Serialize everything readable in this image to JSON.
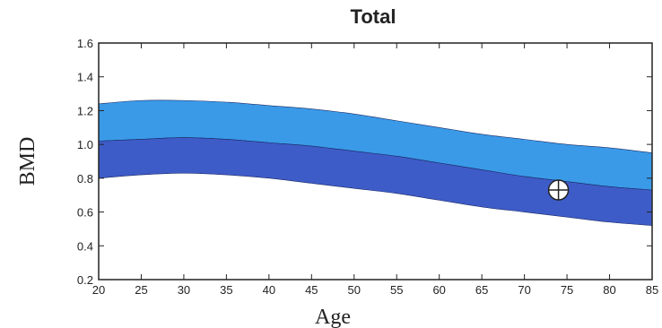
{
  "chart_data": {
    "type": "area",
    "title": "Total",
    "xlabel": "Age",
    "ylabel": "BMD",
    "xlim": [
      20,
      85
    ],
    "ylim": [
      0.2,
      1.6
    ],
    "xticks": [
      20,
      25,
      30,
      35,
      40,
      45,
      50,
      55,
      60,
      65,
      70,
      75,
      80,
      85
    ],
    "yticks": [
      0.2,
      0.4,
      0.6,
      0.8,
      1.0,
      1.2,
      1.4,
      1.6
    ],
    "ytick_labels": [
      "0.2",
      "0.4",
      "0.6",
      "0.8",
      "1.0",
      "1.2",
      "1.4",
      "1.6"
    ],
    "grid": false,
    "x": [
      20,
      25,
      30,
      35,
      40,
      45,
      50,
      55,
      60,
      65,
      70,
      75,
      80,
      85
    ],
    "bands": [
      {
        "color": "#3a9ae8",
        "upper": [
          1.24,
          1.26,
          1.26,
          1.25,
          1.23,
          1.21,
          1.18,
          1.14,
          1.1,
          1.06,
          1.03,
          1.0,
          0.98,
          0.95
        ],
        "lower": [
          1.02,
          1.03,
          1.04,
          1.03,
          1.01,
          0.99,
          0.96,
          0.93,
          0.89,
          0.85,
          0.81,
          0.78,
          0.75,
          0.73
        ]
      },
      {
        "color": "#3e5cc8",
        "upper": [
          1.02,
          1.03,
          1.04,
          1.03,
          1.01,
          0.99,
          0.96,
          0.93,
          0.89,
          0.85,
          0.81,
          0.78,
          0.75,
          0.73
        ],
        "lower": [
          0.8,
          0.82,
          0.83,
          0.82,
          0.8,
          0.77,
          0.74,
          0.71,
          0.67,
          0.63,
          0.6,
          0.57,
          0.54,
          0.52
        ]
      }
    ],
    "points": [
      {
        "x": 74,
        "y": 0.73,
        "marker": "circle-plus"
      }
    ]
  }
}
